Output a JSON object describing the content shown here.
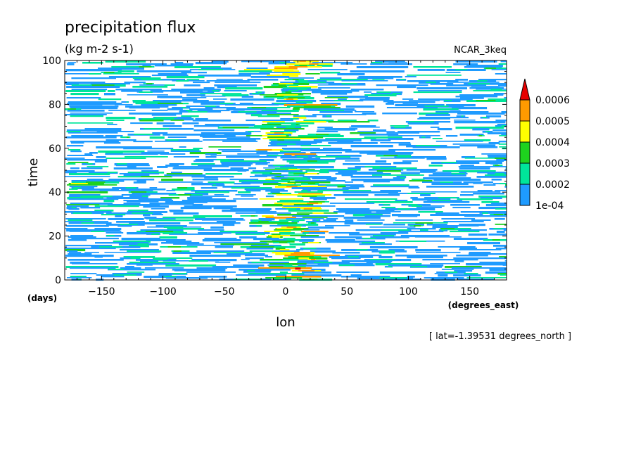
{
  "chart_data": {
    "type": "heatmap",
    "title": "precipitation flux",
    "units": "(kg m-2 s-1)",
    "model_label": "NCAR_3keq",
    "xlabel": "lon",
    "x_units": "(degrees_east)",
    "ylabel": "time",
    "y_units": "(days)",
    "footnote": "[ lat=-1.39531 degrees_north ]",
    "xlim": [
      -180,
      180
    ],
    "ylim": [
      0,
      100
    ],
    "x_ticks": [
      -150,
      -100,
      -50,
      0,
      50,
      100,
      150
    ],
    "y_ticks": [
      0,
      20,
      40,
      60,
      80,
      100
    ],
    "grid": false,
    "legend_placement": "right",
    "colorbar": {
      "levels": [
        "1e-04",
        "0.0002",
        "0.0003",
        "0.0004",
        "0.0005",
        "0.0006"
      ],
      "colors": [
        "#1e9bff",
        "#00e59a",
        "#1ed21e",
        "#ffff00",
        "#ff9a00",
        "#e60000"
      ],
      "extend": "max"
    },
    "description_of_field": {
      "active_band_lon_center": 5,
      "active_band_lon_halfwidth": 20,
      "max_value_location": {
        "lon": 10,
        "time": 5
      }
    }
  }
}
